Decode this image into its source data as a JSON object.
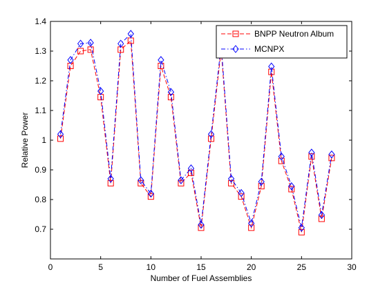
{
  "chart_data": {
    "type": "line",
    "title": "",
    "xlabel": "Number of Fuel Assemblies",
    "ylabel": "Relative Power",
    "xlim": [
      0,
      30
    ],
    "ylim": [
      0.6,
      1.4
    ],
    "xticks": [
      0,
      5,
      10,
      15,
      20,
      25,
      30
    ],
    "yticks": [
      0.7,
      0.8,
      0.9,
      1,
      1.1,
      1.2,
      1.3,
      1.4
    ],
    "grid": false,
    "legend_position": "top-right",
    "x": [
      1,
      2,
      3,
      4,
      5,
      6,
      7,
      8,
      9,
      10,
      11,
      12,
      13,
      14,
      15,
      16,
      17,
      18,
      19,
      20,
      21,
      22,
      23,
      24,
      25,
      26,
      27,
      28
    ],
    "series": [
      {
        "name": "BNPP Neutron Album",
        "color": "#ff0000",
        "line_style": "dashed",
        "marker": "square",
        "values": [
          1.005,
          1.25,
          1.3,
          1.305,
          1.145,
          0.855,
          1.305,
          1.335,
          0.855,
          0.81,
          1.25,
          1.145,
          0.855,
          0.89,
          0.705,
          1.005,
          1.305,
          0.855,
          0.81,
          0.705,
          0.845,
          1.23,
          0.93,
          0.835,
          0.69,
          0.945,
          0.735,
          0.94
        ]
      },
      {
        "name": "MCNPX",
        "color": "#0000ff",
        "line_style": "dash-dot",
        "marker": "diamond",
        "values": [
          1.02,
          1.27,
          1.325,
          1.328,
          1.165,
          0.87,
          1.325,
          1.358,
          0.865,
          0.82,
          1.27,
          1.162,
          0.865,
          0.905,
          0.715,
          1.02,
          1.32,
          0.87,
          0.822,
          0.72,
          0.86,
          1.248,
          0.945,
          0.845,
          0.705,
          0.958,
          0.748,
          0.952
        ]
      }
    ]
  }
}
